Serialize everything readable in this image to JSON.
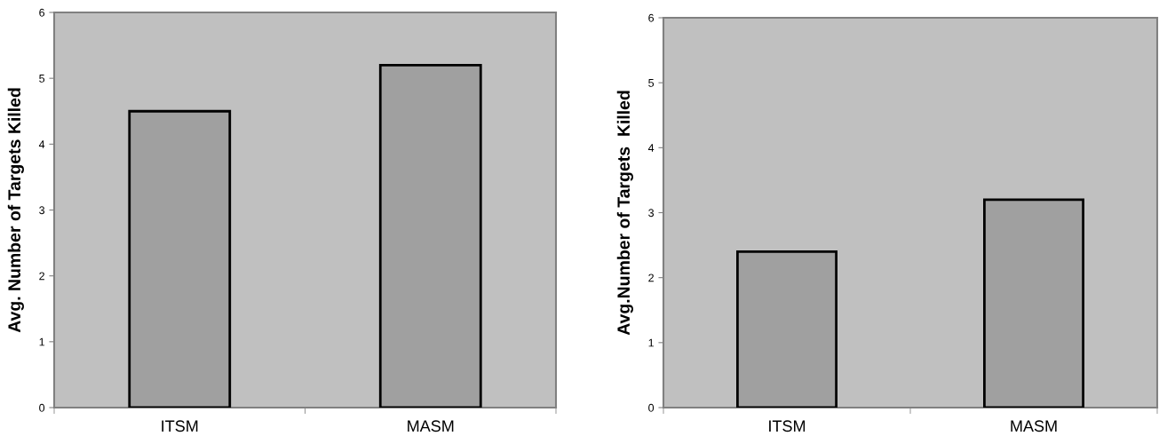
{
  "chart_data": [
    {
      "type": "bar",
      "ylabel": "Avg. Number of Targets Killed",
      "categories": [
        "ITSM",
        "MASM"
      ],
      "values": [
        4.5,
        5.2
      ],
      "color": "#a0a0a0",
      "ylim": [
        0,
        6
      ],
      "yticks": [
        0,
        1,
        2,
        3,
        4,
        5,
        6
      ],
      "grid": false
    },
    {
      "type": "bar",
      "ylabel": "Avg.Number of Targets  Killed",
      "categories": [
        "ITSM",
        "MASM"
      ],
      "values": [
        2.4,
        3.2
      ],
      "color": "#a0a0a0",
      "ylim": [
        0,
        6
      ],
      "yticks": [
        0,
        1,
        2,
        3,
        4,
        5,
        6
      ],
      "grid": false
    }
  ]
}
